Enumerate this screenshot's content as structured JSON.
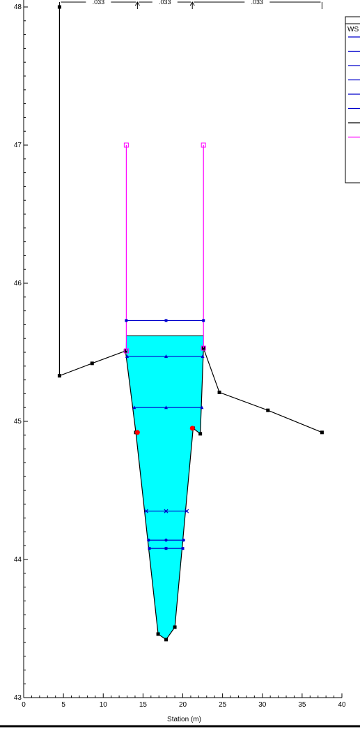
{
  "chart_data": {
    "type": "line",
    "xlabel": "Station (m)",
    "ylabel": "",
    "xlim": [
      0,
      40
    ],
    "ylim": [
      43,
      48
    ],
    "x_ticks": [
      0,
      5,
      10,
      15,
      20,
      25,
      30,
      35,
      40
    ],
    "y_ticks": [
      43,
      44,
      45,
      46,
      47,
      48
    ],
    "grid": false,
    "mannings_n": [
      ".033",
      ".033",
      ".033"
    ],
    "legend": {
      "placement": "top-right",
      "entries": [
        "WS"
      ]
    },
    "water_fill": {
      "color": "#00ffff",
      "surface_elevation": 45.62,
      "points": [
        [
          12.9,
          45.62
        ],
        [
          22.6,
          45.62
        ],
        [
          22.6,
          45.53
        ],
        [
          22.2,
          44.91
        ],
        [
          21.3,
          44.95
        ],
        [
          19.0,
          43.51
        ],
        [
          17.9,
          43.42
        ],
        [
          16.9,
          43.46
        ],
        [
          14.1,
          44.92
        ],
        [
          12.8,
          45.51
        ],
        [
          12.9,
          45.62
        ]
      ]
    },
    "ground": {
      "color": "#000000",
      "points": [
        [
          4.5,
          48.0
        ],
        [
          4.5,
          45.33
        ],
        [
          8.6,
          45.42
        ],
        [
          12.8,
          45.51
        ],
        [
          14.1,
          44.92
        ],
        [
          16.9,
          43.46
        ],
        [
          17.9,
          43.42
        ],
        [
          19.0,
          43.51
        ],
        [
          21.3,
          44.95
        ],
        [
          22.2,
          44.91
        ],
        [
          22.6,
          45.53
        ],
        [
          24.6,
          45.21
        ],
        [
          30.7,
          45.08
        ],
        [
          37.5,
          44.92
        ]
      ]
    },
    "levee_walls": {
      "color": "#ff00ff",
      "series": [
        {
          "points": [
            [
              12.9,
              47.0
            ],
            [
              12.9,
              45.51
            ]
          ]
        },
        {
          "points": [
            [
              22.6,
              47.0
            ],
            [
              22.6,
              45.53
            ]
          ]
        }
      ]
    },
    "bank_stations": {
      "color": "#ff0000",
      "points": [
        [
          14.3,
          44.92
        ],
        [
          21.2,
          44.95
        ]
      ]
    },
    "ws_lines": {
      "color": "#0000cc",
      "series": [
        {
          "elevation": 45.73,
          "x": [
            12.9,
            17.9,
            22.6
          ]
        },
        {
          "elevation": 45.47,
          "x": [
            13.0,
            17.9,
            22.5
          ]
        },
        {
          "elevation": 45.1,
          "x": [
            13.9,
            17.9,
            22.4
          ]
        },
        {
          "elevation": 44.35,
          "x": [
            15.4,
            17.9,
            20.5
          ]
        },
        {
          "elevation": 44.14,
          "x": [
            15.7,
            17.9,
            20.1
          ]
        },
        {
          "elevation": 44.08,
          "x": [
            15.8,
            17.9,
            20.0
          ]
        }
      ]
    },
    "manning_boundaries_x": [
      4.5,
      14.3,
      21.2,
      37.5
    ],
    "legend_swatches": [
      "#0000cc",
      "#0000cc",
      "#0000cc",
      "#0000cc",
      "#0000cc",
      "#0000cc",
      "#000000",
      "#ff00ff"
    ]
  }
}
